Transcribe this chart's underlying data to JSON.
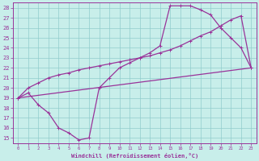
{
  "bg_color": "#c8eeea",
  "grid_color": "#90cccc",
  "line_color": "#993399",
  "xlabel": "Windchill (Refroidissement éolien,°C)",
  "xlim": [
    -0.5,
    23.5
  ],
  "ylim": [
    14.5,
    28.5
  ],
  "xticks": [
    0,
    1,
    2,
    3,
    4,
    5,
    6,
    7,
    8,
    9,
    10,
    11,
    12,
    13,
    14,
    15,
    16,
    17,
    18,
    19,
    20,
    21,
    22,
    23
  ],
  "yticks": [
    15,
    16,
    17,
    18,
    19,
    20,
    21,
    22,
    23,
    24,
    25,
    26,
    27,
    28
  ],
  "curve_dip_x": [
    0,
    1,
    2,
    3,
    4,
    5,
    6,
    7,
    8,
    9,
    10,
    11,
    12,
    13,
    14,
    15,
    16,
    17,
    18,
    19,
    20,
    21,
    22,
    23
  ],
  "curve_dip_y": [
    19,
    19.5,
    18.3,
    17.5,
    16.0,
    15.5,
    14.8,
    15.0,
    20.0,
    21.0,
    22.0,
    22.5,
    23.0,
    23.5,
    24.2,
    28.2,
    28.2,
    28.2,
    27.8,
    27.3,
    26.0,
    25.0,
    24.0,
    22.0
  ],
  "curve_up_x": [
    0,
    1,
    2,
    3,
    4,
    5,
    6,
    7,
    8,
    9,
    10,
    11,
    12,
    13,
    14,
    15,
    16,
    17,
    18,
    19,
    20,
    21,
    22,
    23
  ],
  "curve_up_y": [
    19,
    20.0,
    20.5,
    21.0,
    21.3,
    21.5,
    21.8,
    22.0,
    22.2,
    22.4,
    22.6,
    22.8,
    23.0,
    23.2,
    23.5,
    23.8,
    24.2,
    24.7,
    25.2,
    25.6,
    26.2,
    26.8,
    27.2,
    22.0
  ],
  "curve_line_x": [
    0,
    23
  ],
  "curve_line_y": [
    19.0,
    22.0
  ]
}
